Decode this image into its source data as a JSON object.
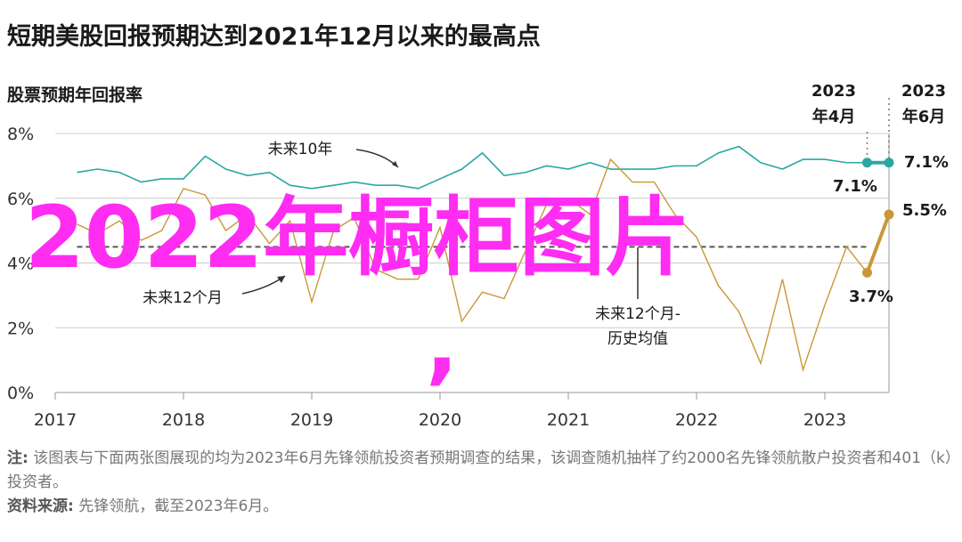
{
  "title": "短期美股回报预期达到2021年12月以来的最高点",
  "subtitle": "股票预期年回报率",
  "overlay": {
    "text": "2022年橱柜图片",
    "comma": ","
  },
  "annotations": {
    "ten_year": "未来10年",
    "twelve_month": "未来12个月",
    "hist_avg_line1": "未来12个月-",
    "hist_avg_line2": "历史均值",
    "apr_year": "2023",
    "apr_month": "年4月",
    "jun_year": "2023",
    "jun_month": "年6月",
    "val_10y_jun": "7.1%",
    "val_10y_apr": "7.1%",
    "val_12m_jun": "5.5%",
    "val_12m_apr": "3.7%"
  },
  "note": {
    "label": "注:",
    "text": " 该图表与下面两张图展现的均为2023年6月先锋领航投资者预期调查的结果，该调查随机抽样了约2000名先锋领航散户投资者和401（k）投资者。"
  },
  "source": {
    "label": "资料来源:",
    "text": " 先锋领航，截至2023年6月。"
  },
  "colors": {
    "ten_year": "#2aa7a3",
    "twelve_month": "#c9973a",
    "overlay": "#ff2cf2",
    "grid": "#cccccc"
  },
  "chart_data": {
    "type": "line",
    "title": "短期美股回报预期达到2021年12月以来的最高点",
    "subtitle": "股票预期年回报率",
    "xlabel": "",
    "ylabel": "",
    "x_ticks": [
      "2017",
      "2018",
      "2019",
      "2020",
      "2021",
      "2022",
      "2023"
    ],
    "y_ticks": [
      "0%",
      "2%",
      "4%",
      "6%",
      "8%"
    ],
    "ylim": [
      0,
      8
    ],
    "xlim": [
      2017.0,
      2023.5
    ],
    "grid": true,
    "reference_lines": [
      {
        "name": "未来12个月-历史均值",
        "value": 4.5
      }
    ],
    "series": [
      {
        "name": "未来10年",
        "x": [
          2017.17,
          2017.33,
          2017.5,
          2017.67,
          2017.83,
          2018.0,
          2018.17,
          2018.33,
          2018.5,
          2018.67,
          2018.83,
          2019.0,
          2019.17,
          2019.33,
          2019.5,
          2019.67,
          2019.83,
          2020.0,
          2020.17,
          2020.33,
          2020.5,
          2020.67,
          2020.83,
          2021.0,
          2021.17,
          2021.33,
          2021.5,
          2021.67,
          2021.83,
          2022.0,
          2022.17,
          2022.33,
          2022.5,
          2022.67,
          2022.83,
          2023.0,
          2023.17,
          2023.33,
          2023.5
        ],
        "values": [
          6.8,
          6.9,
          6.8,
          6.5,
          6.6,
          6.6,
          7.3,
          6.9,
          6.7,
          6.8,
          6.4,
          6.3,
          6.4,
          6.5,
          6.4,
          6.4,
          6.3,
          6.6,
          6.9,
          7.4,
          6.7,
          6.8,
          7.0,
          6.9,
          7.1,
          6.9,
          6.9,
          6.9,
          7.0,
          7.0,
          7.4,
          7.6,
          7.1,
          6.9,
          7.2,
          7.2,
          7.1,
          7.1,
          7.1
        ]
      },
      {
        "name": "未来12个月",
        "x": [
          2017.17,
          2017.33,
          2017.5,
          2017.67,
          2017.83,
          2018.0,
          2018.17,
          2018.33,
          2018.5,
          2018.67,
          2018.83,
          2019.0,
          2019.17,
          2019.33,
          2019.5,
          2019.67,
          2019.83,
          2020.0,
          2020.17,
          2020.33,
          2020.5,
          2020.67,
          2020.83,
          2021.0,
          2021.17,
          2021.33,
          2021.5,
          2021.67,
          2021.83,
          2022.0,
          2022.17,
          2022.33,
          2022.5,
          2022.67,
          2022.83,
          2023.0,
          2023.17,
          2023.33,
          2023.5
        ],
        "values": [
          5.2,
          4.9,
          5.3,
          4.7,
          5.0,
          6.3,
          6.1,
          5.0,
          5.5,
          4.6,
          5.3,
          2.8,
          5.0,
          5.4,
          3.8,
          3.5,
          3.5,
          5.1,
          2.2,
          3.1,
          2.9,
          4.4,
          5.8,
          6.0,
          5.5,
          7.2,
          6.5,
          6.5,
          5.5,
          4.8,
          3.3,
          2.5,
          0.9,
          3.5,
          0.7,
          2.7,
          4.5,
          3.7,
          5.5
        ]
      }
    ]
  }
}
